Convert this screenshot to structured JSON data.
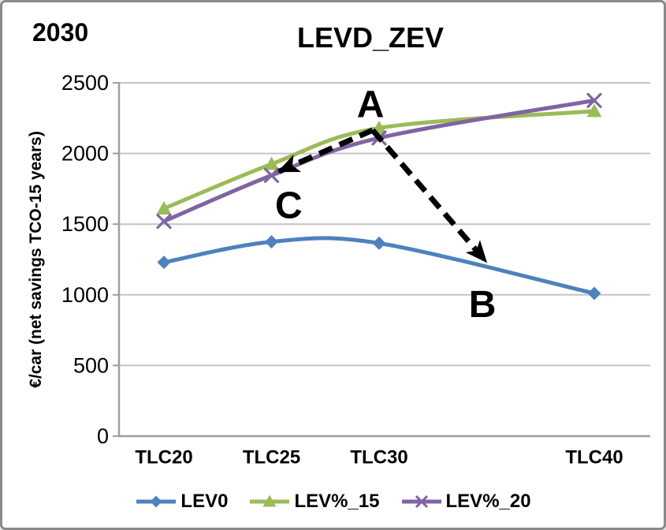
{
  "header": {
    "year": "2030"
  },
  "chart_data": {
    "type": "line",
    "title": "LEVD_ZEV",
    "ylabel": "€/car (net savings TCO-15 years)",
    "xlabel": "",
    "categories": [
      "TLC20",
      "TLC25",
      "TLC30",
      "TLC40"
    ],
    "x": [
      20,
      25,
      30,
      40
    ],
    "ylim": [
      0,
      2500
    ],
    "yticks": [
      0,
      500,
      1000,
      1500,
      2000,
      2500
    ],
    "grid": true,
    "legend_position": "bottom",
    "line_style": "smooth",
    "series": [
      {
        "name": "LEV0",
        "color": "#4F81BD",
        "marker": "diamond",
        "values": [
          1230,
          1375,
          1365,
          1010
        ]
      },
      {
        "name": "LEV%_15",
        "color": "#9BBB59",
        "marker": "triangle",
        "values": [
          1610,
          1925,
          2180,
          2300
        ]
      },
      {
        "name": "LEV%_20",
        "color": "#8064A2",
        "marker": "x",
        "values": [
          1520,
          1845,
          2110,
          2375
        ]
      }
    ],
    "annotations": {
      "labels": [
        {
          "text": "A",
          "x": 29.6,
          "y": 2345
        },
        {
          "text": "B",
          "x": 34.8,
          "y": 930
        },
        {
          "text": "C",
          "x": 25.8,
          "y": 1630
        }
      ],
      "arrows": [
        {
          "from": [
            29.7,
            2165
          ],
          "to": [
            25.3,
            1870
          ]
        },
        {
          "from": [
            29.7,
            2165
          ],
          "to": [
            35.0,
            1230
          ]
        }
      ],
      "arrow_color": "#000000"
    },
    "colors": {
      "gridline": "#C4C4C4",
      "axis": "#9E9E9E",
      "text": "#000000"
    }
  }
}
